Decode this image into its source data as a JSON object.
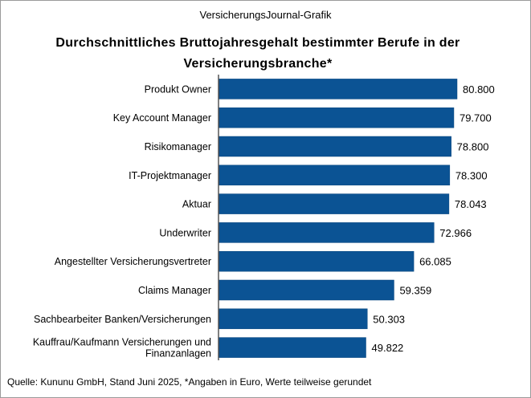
{
  "header": "VersicherungsJournal-Grafik",
  "footer": "Quelle: Kununu GmbH, Stand Juni 2025, *Angaben in Euro, Werte teilweise gerundet",
  "chart_data": {
    "type": "bar",
    "orientation": "horizontal",
    "title": "Durchschnittliches Bruttojahresgehalt bestimmter Berufe in der Versicherungsbranche*",
    "xlabel": "",
    "ylabel": "",
    "xlim": [
      0,
      80800
    ],
    "bar_color": "#0b5394",
    "categories": [
      "Produkt Owner",
      "Key Account Manager",
      "Risikomanager",
      "IT-Projektmanager",
      "Aktuar",
      "Underwriter",
      "Angestellter Versicherungsvertreter",
      "Claims Manager",
      "Sachbearbeiter Banken/Versicherungen",
      "Kauffrau/Kaufmann Versicherungen und Finanzanlagen"
    ],
    "values": [
      80800,
      79700,
      78800,
      78300,
      78043,
      72966,
      66085,
      59359,
      50303,
      49822
    ],
    "labels": [
      "80.800",
      "79.700",
      "78.800",
      "78.300",
      "78.043",
      "72.966",
      "66.085",
      "59.359",
      "50.303",
      "49.822"
    ],
    "category_lines": [
      [
        "Produkt Owner"
      ],
      [
        "Key Account Manager"
      ],
      [
        "Risikomanager"
      ],
      [
        "IT-Projektmanager"
      ],
      [
        "Aktuar"
      ],
      [
        "Underwriter"
      ],
      [
        "Angestellter Versicherungsvertreter"
      ],
      [
        "Claims Manager"
      ],
      [
        "Sachbearbeiter Banken/Versicherungen"
      ],
      [
        "Kauffrau/Kaufmann Versicherungen und",
        "Finanzanlagen"
      ]
    ]
  }
}
